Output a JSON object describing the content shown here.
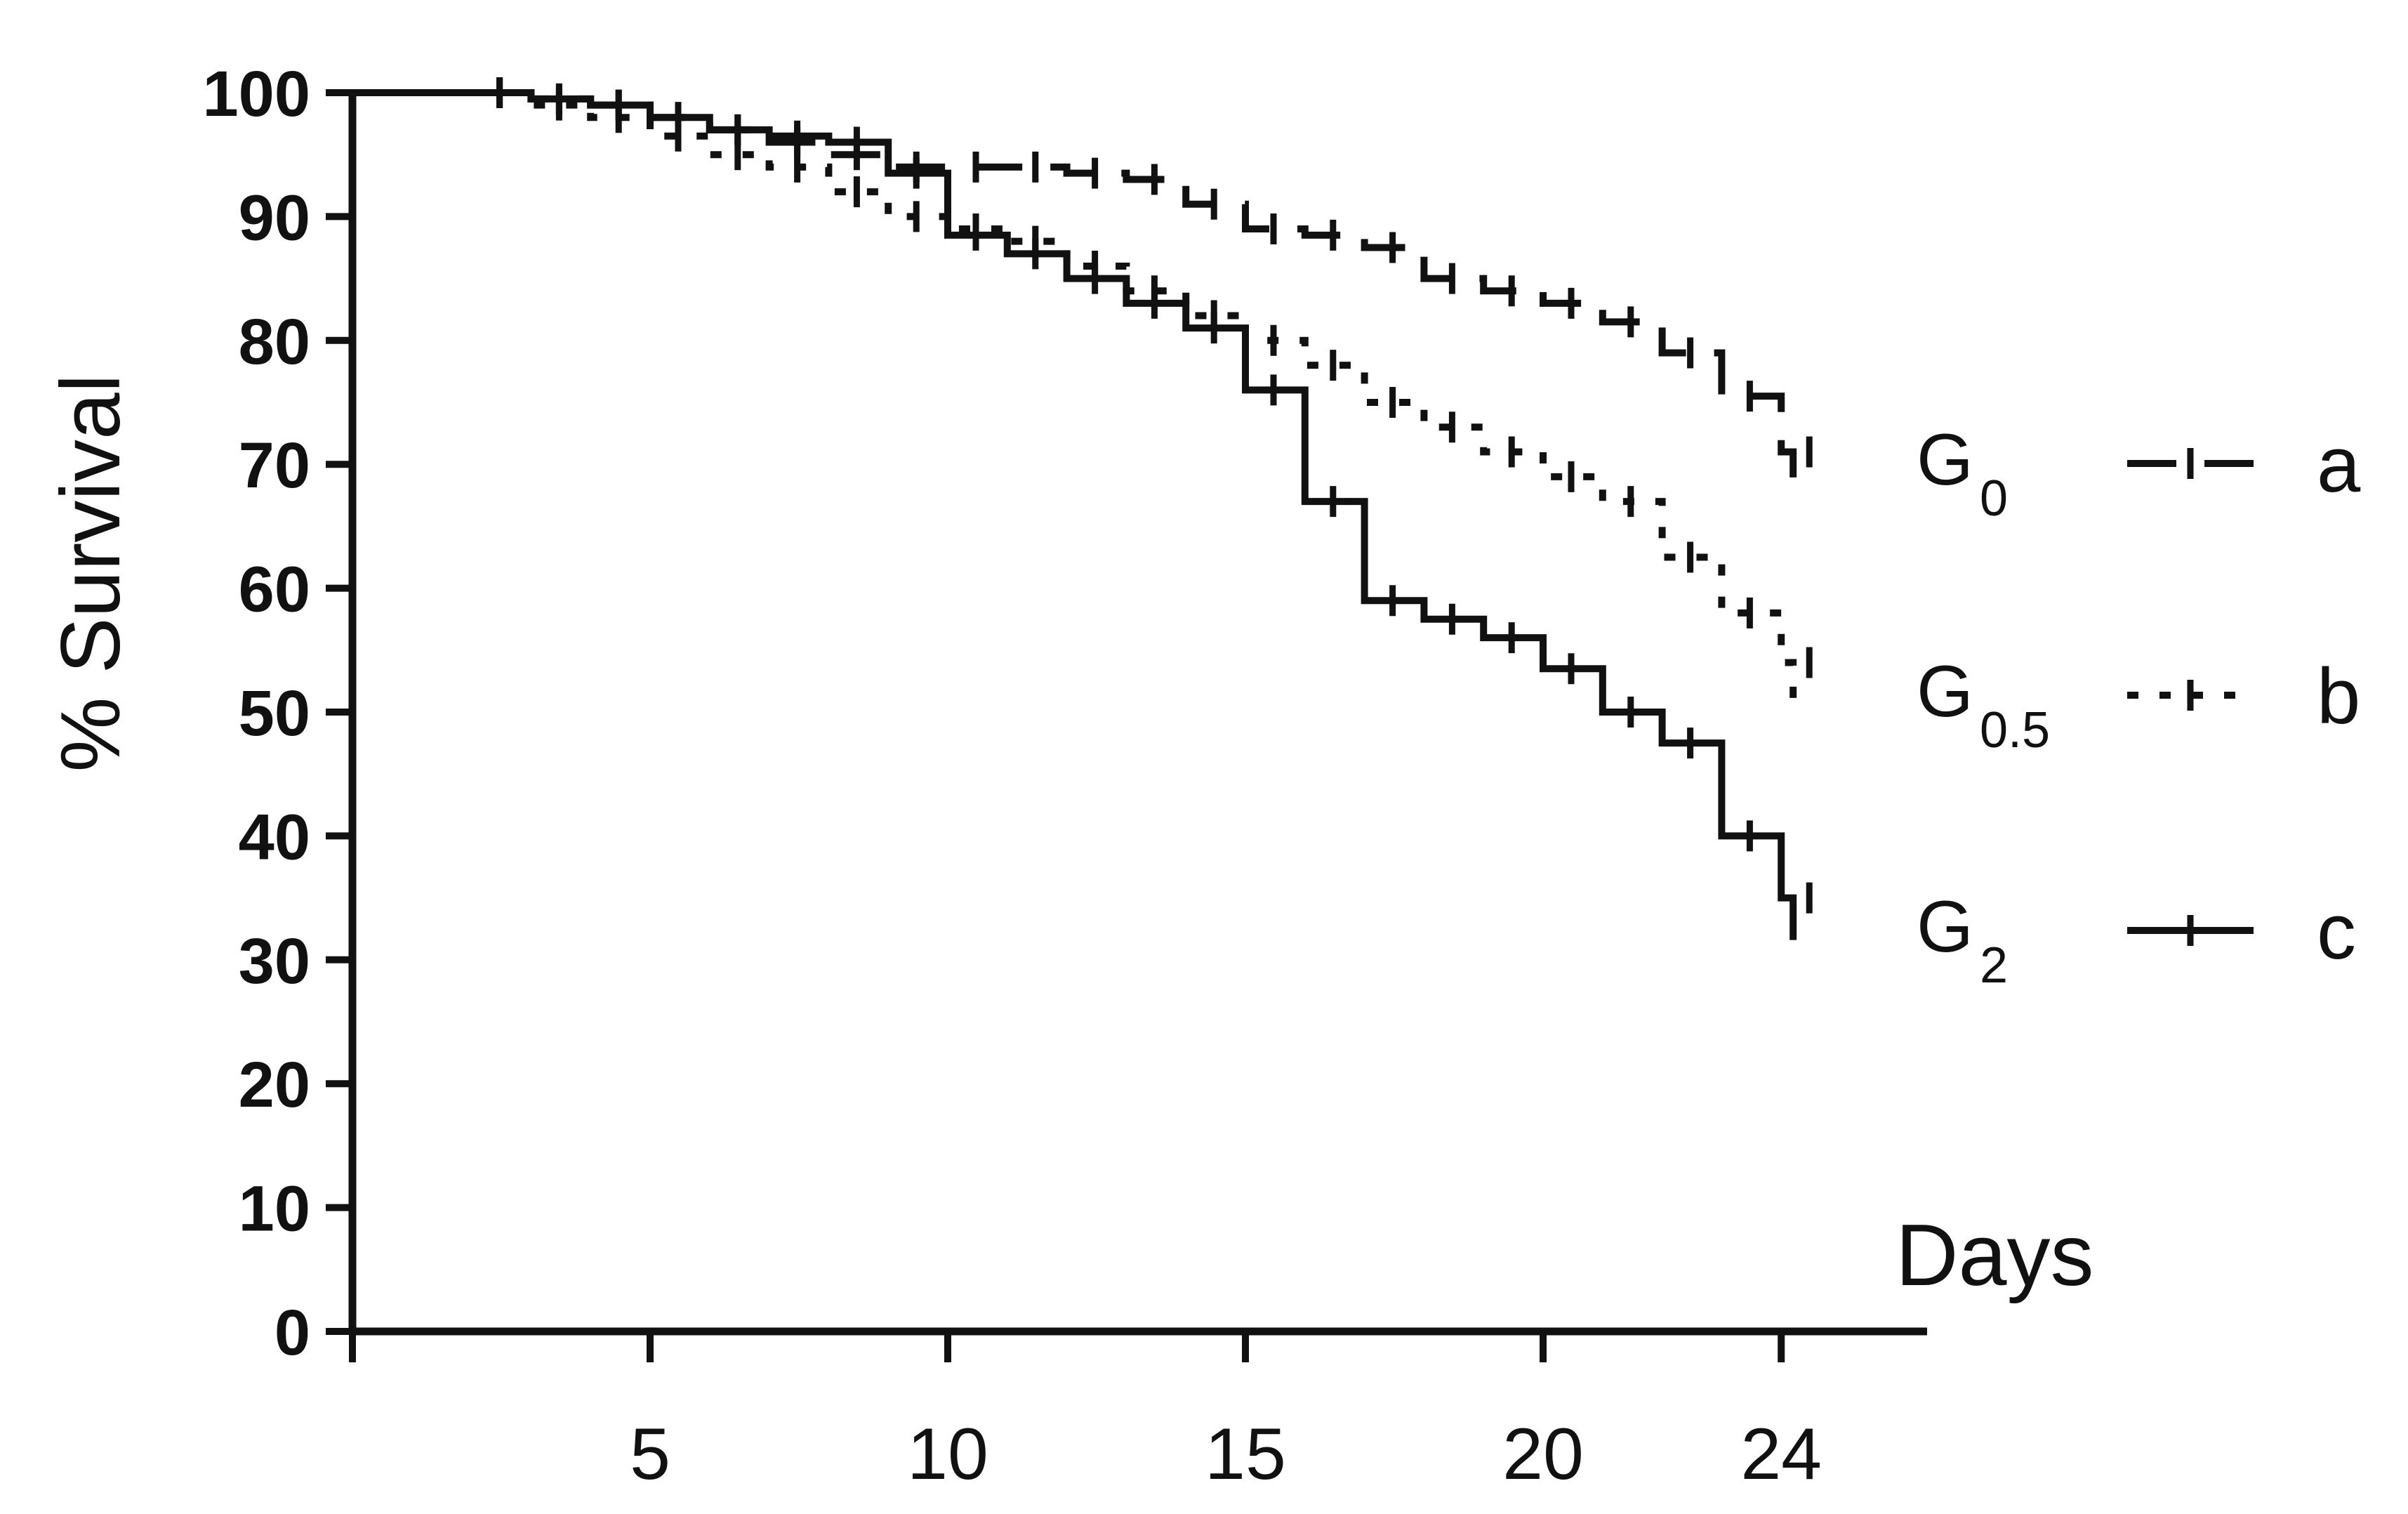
{
  "chart_data": {
    "type": "line",
    "step": true,
    "xlabel": "Days",
    "ylabel": "% Survival",
    "xlim": [
      0,
      25
    ],
    "ylim": [
      0,
      100
    ],
    "xticks": [
      5,
      10,
      15,
      20,
      24
    ],
    "yticks": [
      0,
      10,
      20,
      30,
      40,
      50,
      60,
      70,
      80,
      90,
      100
    ],
    "grid": false,
    "legend_position": "right",
    "series": [
      {
        "name": "G",
        "subscript": "0",
        "significance": "a",
        "style": "dashed",
        "color": "#111111",
        "x": [
          0,
          2,
          3,
          4,
          5,
          6,
          7,
          8,
          9,
          10,
          11,
          12,
          13,
          14,
          15,
          16,
          17,
          18,
          19,
          20,
          21,
          22,
          23,
          24
        ],
        "y": [
          100,
          100,
          99.5,
          99,
          98,
          97,
          96,
          95,
          94,
          94,
          94,
          93.5,
          93,
          91,
          89,
          88.5,
          87.5,
          85,
          84,
          83,
          81.5,
          79,
          75.5,
          71
        ]
      },
      {
        "name": "G",
        "subscript": "0.5",
        "significance": "b",
        "style": "dotted",
        "color": "#111111",
        "x": [
          0,
          2,
          3,
          4,
          5,
          6,
          7,
          8,
          9,
          10,
          11,
          12,
          13,
          14,
          15,
          16,
          17,
          18,
          19,
          20,
          21,
          22,
          23,
          24
        ],
        "y": [
          100,
          100,
          99,
          98,
          96.5,
          95,
          94,
          92,
          90,
          89,
          88,
          86,
          84,
          82,
          80,
          78,
          75,
          73,
          71,
          69,
          67,
          62.5,
          58,
          54
        ]
      },
      {
        "name": "G",
        "subscript": "2",
        "significance": "c",
        "style": "solid",
        "color": "#111111",
        "x": [
          0,
          2,
          3,
          4,
          5,
          6,
          7,
          8,
          9,
          10,
          11,
          12,
          13,
          14,
          15,
          16,
          17,
          18,
          19,
          20,
          21,
          22,
          23,
          24
        ],
        "y": [
          100,
          100,
          99.5,
          99,
          98,
          97,
          96.5,
          96,
          93.5,
          88.5,
          87,
          85,
          83,
          81,
          76,
          67,
          59,
          57.5,
          56,
          53.5,
          50,
          47.5,
          40,
          35
        ]
      }
    ]
  }
}
